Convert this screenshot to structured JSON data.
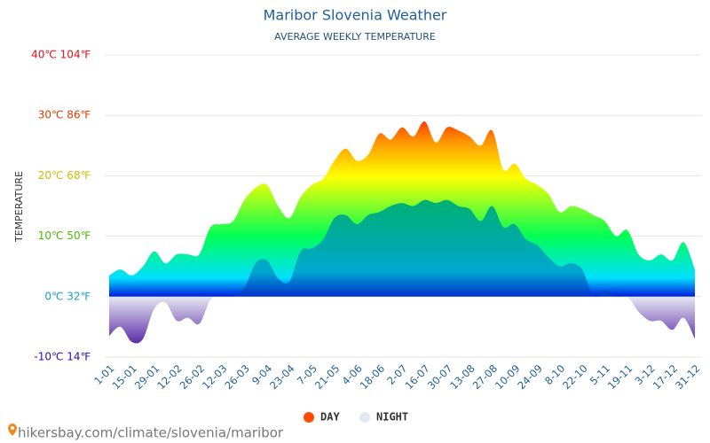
{
  "chart_data": {
    "type": "area",
    "title": "Maribor Slovenia Weather",
    "subtitle": "AVERAGE WEEKLY TEMPERATURE",
    "y_label": "TEMPERATURE",
    "source": "hikersbay.com/climate/slovenia/maribor",
    "categories": [
      "1-01",
      null,
      "15-01",
      null,
      "29-01",
      null,
      "12-02",
      null,
      "26-02",
      null,
      "12-03",
      null,
      "26-03",
      null,
      "9-04",
      null,
      "23-04",
      null,
      "7-05",
      null,
      "21-05",
      null,
      "4-06",
      null,
      "18-06",
      null,
      "2-07",
      null,
      "16-07",
      null,
      "30-07",
      null,
      "13-08",
      null,
      "27-08",
      null,
      "10-09",
      null,
      "24-09",
      null,
      "8-10",
      null,
      "22-10",
      null,
      "5-11",
      null,
      "19-11",
      null,
      "3-12",
      null,
      "17-12",
      null,
      "31-12"
    ],
    "series": [
      {
        "name": "DAY",
        "color": "#ff4d00",
        "values": [
          3.5,
          4.5,
          3.5,
          5,
          7.5,
          5.5,
          7,
          7,
          7,
          11.5,
          12,
          12.5,
          16,
          18,
          18.5,
          15,
          13,
          16.5,
          18.5,
          19.5,
          22.5,
          24.5,
          22.5,
          23.5,
          27,
          26,
          28,
          26.5,
          29,
          25.5,
          28,
          27.5,
          26.5,
          25,
          27.5,
          21,
          22,
          19.5,
          18.5,
          17,
          14,
          15,
          14.5,
          13.5,
          12.5,
          10,
          11,
          7,
          6,
          7,
          6,
          9,
          4.5
        ]
      },
      {
        "name": "NIGHT",
        "color": "#e3e8f0",
        "values": [
          -6.5,
          -5,
          -7.5,
          -7,
          -2,
          -1,
          -4,
          -3.5,
          -4.5,
          -0.5,
          0,
          0,
          1.5,
          5.5,
          6,
          3,
          2.5,
          7.5,
          8,
          9.5,
          13,
          13.5,
          12,
          13.5,
          14,
          15,
          15.5,
          15,
          16,
          15.5,
          16,
          15,
          14.5,
          12.5,
          15,
          11.5,
          12,
          9.5,
          8.5,
          6.5,
          5,
          5.5,
          4.5,
          0,
          1,
          0,
          0,
          -2.5,
          -4,
          -4,
          -5.5,
          -3.5,
          -7
        ]
      }
    ],
    "ylim": [
      -10,
      40
    ],
    "yticks": [
      {
        "value": -10,
        "label": "-10℃ 14℉"
      },
      {
        "value": 0,
        "label": "0℃ 32℉"
      },
      {
        "value": 10,
        "label": "10℃ 50℉"
      },
      {
        "value": 20,
        "label": "20℃ 68℉"
      },
      {
        "value": 30,
        "label": "30℃ 86℉"
      },
      {
        "value": 40,
        "label": "40℃ 104℉"
      }
    ],
    "grid": true,
    "legend": "bottom"
  }
}
